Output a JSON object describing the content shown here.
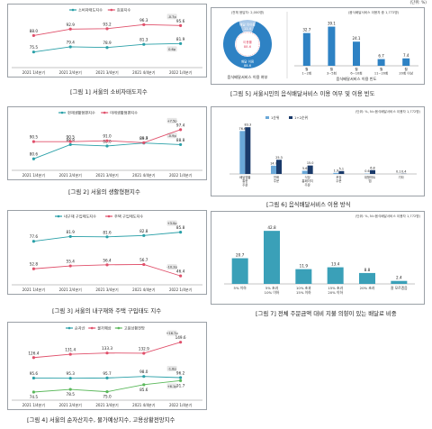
{
  "page_unit": "(단위: %)",
  "captions": [
    "[그림 1] 서울의 소비자태도지수",
    "[그림 2] 서울의 생활형편지수",
    "[그림 3] 서울의 내구재와 주택 구입태도 지수",
    "[그림 4] 서울의 순자산지수, 물가예상지수, 고용상황전망지수",
    "[그림 5] 서울시민의 음식배달서비스 이용 여부 및 이용 빈도",
    "[그림 6] 음식배달서비스 이용 방식",
    "[그림 7] 전체 주문금액 대비 지불 의향이 있는 배달료 비중"
  ],
  "chart_data": [
    {
      "id": "fig1",
      "type": "line",
      "categories": [
        "2021 1/4분기",
        "2021 2/4분기",
        "2021 3/4분기",
        "2021 4/4분기",
        "2022 1/4분기"
      ],
      "series": [
        {
          "name": "소비자태도지수",
          "values": [
            75.5,
            79.4,
            78.9,
            81.3,
            81.9
          ],
          "color": "#2aa0a8"
        },
        {
          "name": "효용지수",
          "values": [
            88.0,
            92.9,
            93.2,
            96.3,
            95.6
          ],
          "color": "#e0506b"
        }
      ],
      "end_badges": [
        "0.6p",
        "-0.7p"
      ],
      "ylim": [
        65,
        102
      ]
    },
    {
      "id": "fig2",
      "type": "line",
      "categories": [
        "2021 1/4분기",
        "2021 2/4분기",
        "2021 3/4분기",
        "2021 4/4분기",
        "2022 1/4분기"
      ],
      "series": [
        {
          "name": "현재생활형편지수",
          "values": [
            80.6,
            88.8,
            88.0,
            89.7,
            88.8
          ],
          "color": "#2aa0a8"
        },
        {
          "name": "미래생활형편지수",
          "values": [
            90.5,
            90.5,
            91.0,
            89.9,
            97.4
          ],
          "color": "#e0506b"
        }
      ],
      "end_badges": [
        "-0.9p",
        "+7.5p"
      ],
      "ylim": [
        75,
        102
      ]
    },
    {
      "id": "fig3",
      "type": "line",
      "categories": [
        "2021 1/4분기",
        "2021 2/4분기",
        "2021 3/4분기",
        "2021 4/4분기",
        "2022 1/4분기"
      ],
      "series": [
        {
          "name": "내구재 구입태도지수",
          "values": [
            77.6,
            81.9,
            81.6,
            82.8,
            85.8
          ],
          "color": "#2aa0a8"
        },
        {
          "name": "주택 구입태도지수",
          "values": [
            52.8,
            55.4,
            56.4,
            56.7,
            46.4
          ],
          "color": "#e0506b"
        }
      ],
      "end_badges": [
        "+3.0p",
        "-10.3p"
      ],
      "ylim": [
        40,
        92
      ]
    },
    {
      "id": "fig4",
      "type": "line",
      "categories": [
        "2021 1/4분기",
        "2021 2/4분기",
        "2021 3/4분기",
        "2021 4/4분기",
        "2022 1/4분기"
      ],
      "series": [
        {
          "name": "순자산",
          "values": [
            95.6,
            95.3,
            95.7,
            98.0,
            96.2
          ],
          "color": "#2aa0a8"
        },
        {
          "name": "물가예상",
          "values": [
            126.4,
            131.4,
            133.3,
            132.9,
            149.6
          ],
          "color": "#e0506b"
        },
        {
          "name": "고용상황전망",
          "values": [
            74.5,
            78.5,
            75.0,
            85.6,
            91.7
          ],
          "color": "#5ab85a"
        }
      ],
      "end_badges": [
        "-1.8p",
        "+16.7p",
        "+6.1p"
      ],
      "ylim": [
        65,
        160
      ]
    },
    {
      "id": "fig5-donut",
      "type": "pie",
      "unit": "(전체 응답자: 2,000명)",
      "slices": [
        {
          "label": "배달 이용",
          "value": 88.6,
          "color": "#2e82c4"
        },
        {
          "label": "배달 미이용",
          "value": 11.4,
          "color": "#a8c8e8"
        }
      ],
      "center_label": "이용률",
      "footer": "음식배달서비스 이용 여부"
    },
    {
      "id": "fig5-bar",
      "type": "bar",
      "unit": "(음식배달서비스 이용자 중 1,772명)",
      "categories": [
        "월 1~2회",
        "월 3~5회",
        "월 6~10회",
        "월 11~20회",
        "월 20회 이상"
      ],
      "values": [
        32.7,
        39.1,
        24.1,
        6.7,
        7.4
      ],
      "color": "#2e82c4",
      "footer": "음식배달서비스 이용 빈도",
      "ylim": [
        0,
        45
      ]
    },
    {
      "id": "fig6",
      "type": "bar",
      "unit": "(단위: %, N=음식배달서비스 이용자 1,772명)",
      "categories": [
        "배달앱을 통한 주문",
        "전화 주문",
        "식당 홈페이지 주문",
        "포장 주문",
        "대형마트 앱",
        "기타"
      ],
      "series": [
        {
          "name": "1순위",
          "values": [
            76.6,
            14.7,
            5.6,
            1.9,
            0.6,
            0.1
          ],
          "color": "#6aa8d8"
        },
        {
          "name": "1+2순위",
          "values": [
            83.3,
            25.3,
            15.0,
            5.1,
            6.8,
            0.4
          ],
          "color": "#1a3a6a"
        }
      ],
      "ylim": [
        0,
        90
      ]
    },
    {
      "id": "fig7",
      "type": "bar",
      "unit": "(단위: %, N=음식배달서비스 이용자 1,772명)",
      "categories": [
        "5% 이하",
        "5% 초과 10% 이하",
        "10% 초과 15% 이하",
        "15% 초과 20% 이하",
        "20% 초과",
        "잘 모르겠음"
      ],
      "values": [
        20.7,
        42.8,
        11.9,
        13.4,
        8.8,
        2.4
      ],
      "color": "#3aa0b8",
      "ylim": [
        0,
        48
      ]
    }
  ]
}
